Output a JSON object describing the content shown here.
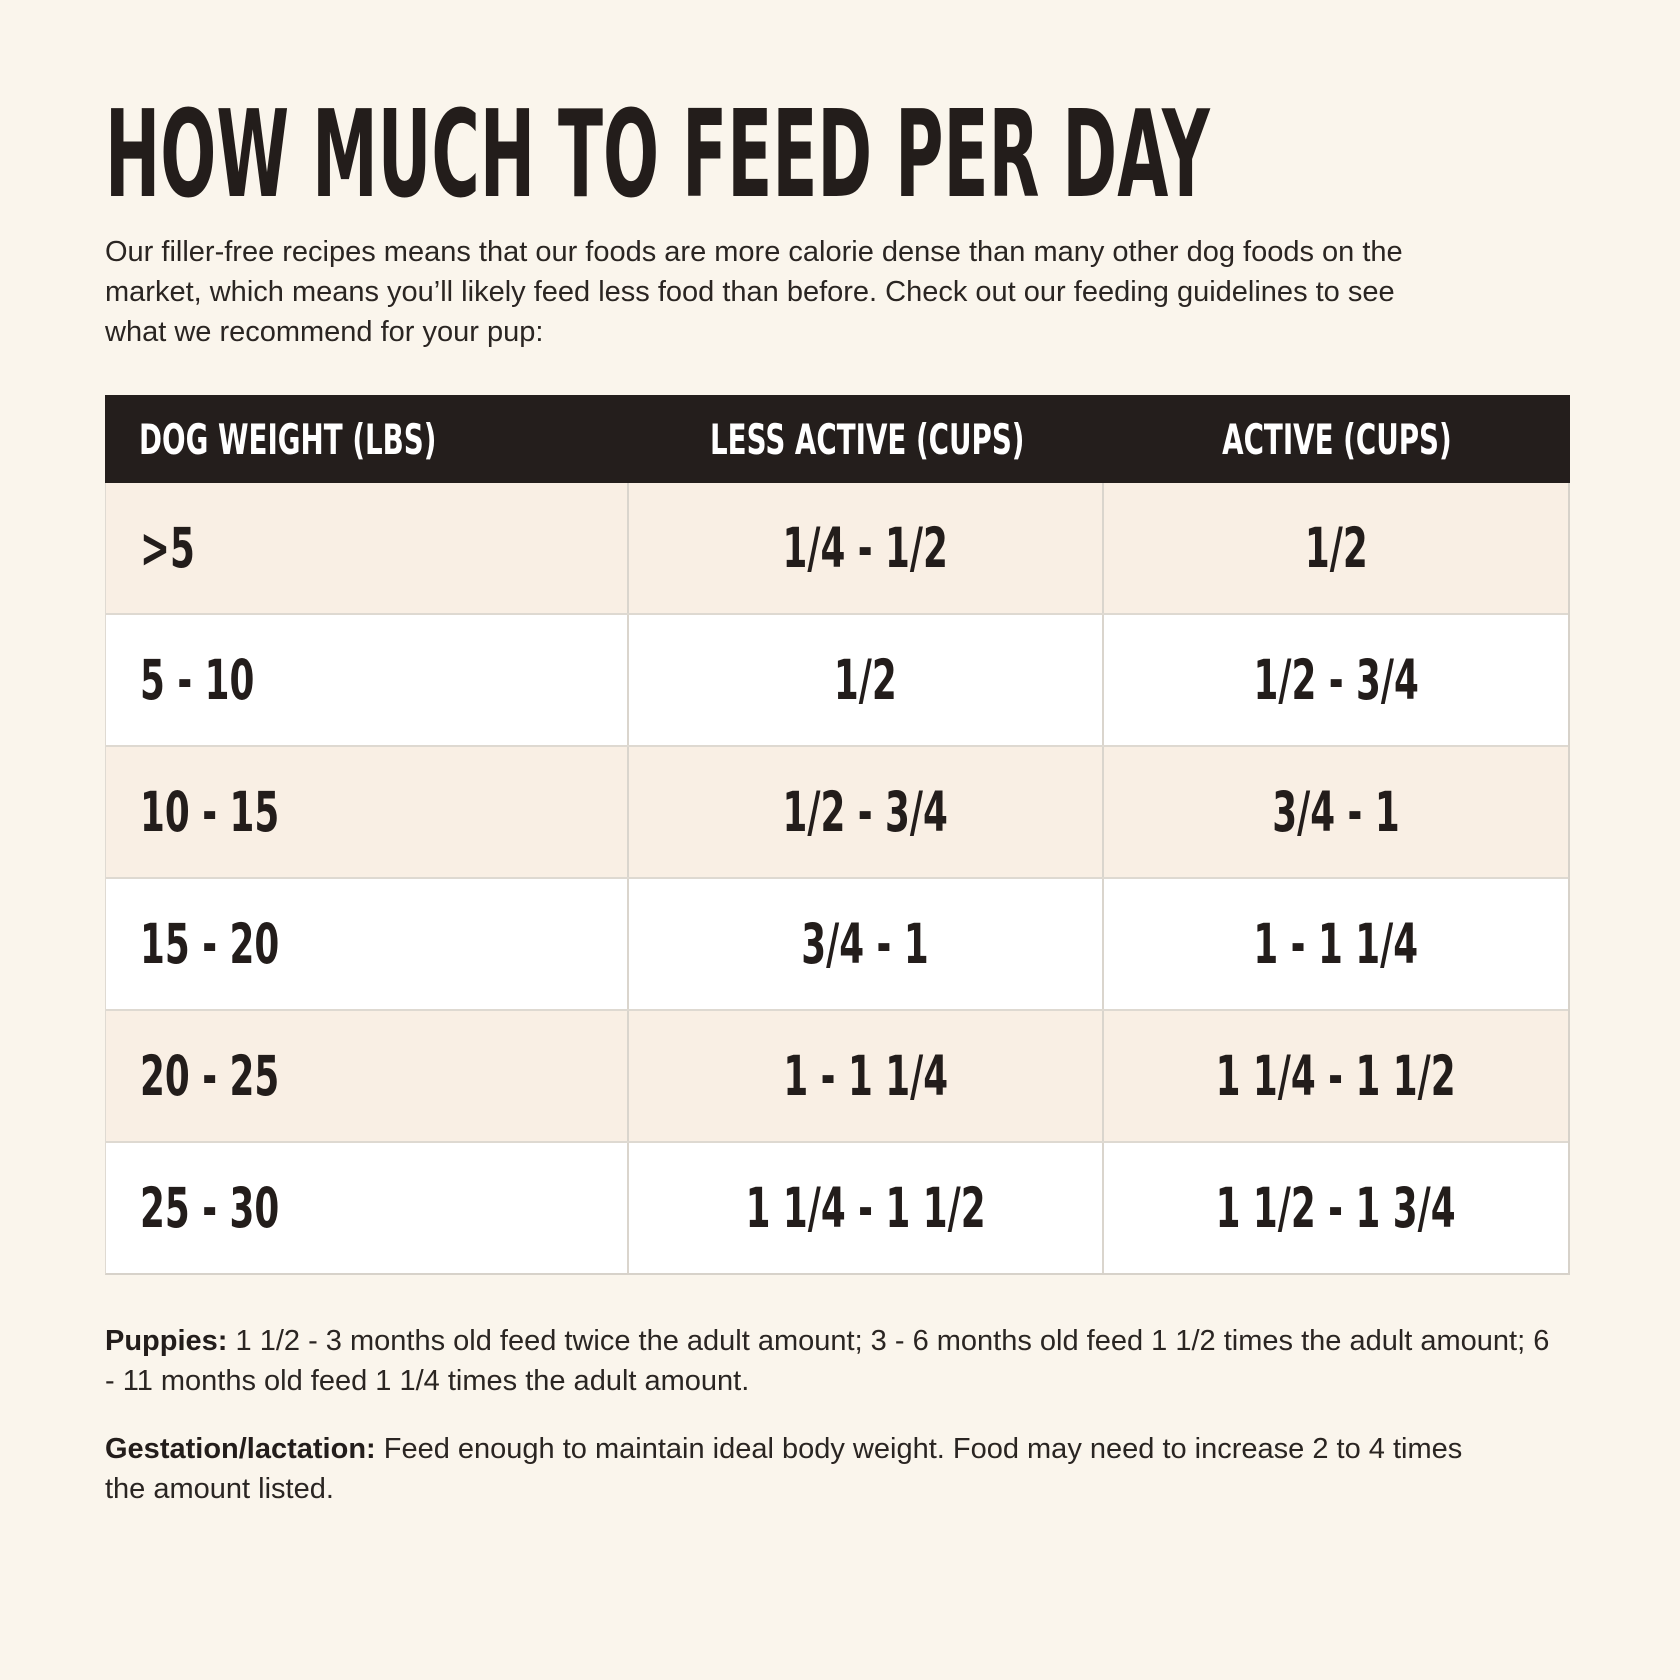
{
  "page": {
    "title": "HOW MUCH TO FEED PER DAY",
    "intro": "Our filler-free recipes means that our foods are more calorie dense than many other dog foods on the market, which means you’ll likely feed less food than before. Check out our feeding guidelines to see what we recommend for your pup:"
  },
  "colors": {
    "page_background": "#FAF5EC",
    "header_background": "#241E1C",
    "header_text": "#FFFFFF",
    "row_cream": "#F9EFE4",
    "row_white": "#FFFFFF",
    "body_text": "#262220",
    "divider": "#DAD5CD"
  },
  "table": {
    "columns": [
      "DOG WEIGHT (LBS)",
      "LESS ACTIVE (CUPS)",
      "ACTIVE (CUPS)"
    ],
    "rows": [
      [
        ">5",
        "1/4 - 1/2",
        "1/2"
      ],
      [
        "5 - 10",
        "1/2",
        "1/2 - 3/4"
      ],
      [
        "10 - 15",
        "1/2 - 3/4",
        "3/4 - 1"
      ],
      [
        "15 - 20",
        "3/4 - 1",
        "1 - 1 1/4"
      ],
      [
        "20 - 25",
        "1 - 1 1/4",
        "1 1/4 - 1 1/2"
      ],
      [
        "25 - 30",
        "1 1/4 - 1 1/2",
        "1 1/2 - 1 3/4"
      ]
    ]
  },
  "notes": [
    {
      "label": "Puppies:",
      "text": " 1 1/2 - 3 months old feed twice the adult amount; 3 - 6 months old feed 1 1/2 times the adult amount; 6 - 11 months old feed 1 1/4 times the adult amount."
    },
    {
      "label": "Gestation/lactation:",
      "text": " Feed enough to maintain ideal body weight. Food may need to increase 2 to 4 times the amount listed."
    }
  ]
}
